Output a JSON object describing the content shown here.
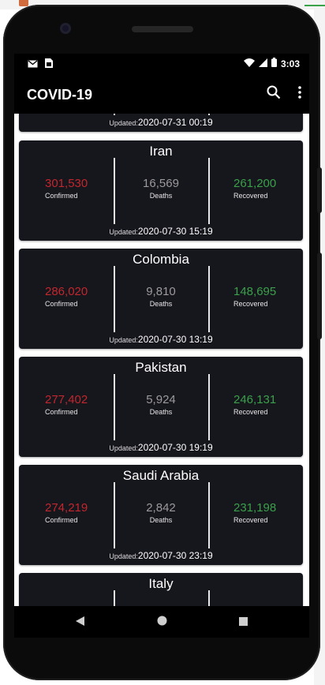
{
  "desktop": {
    "tab_text": ""
  },
  "status": {
    "time": "3:03"
  },
  "appbar": {
    "title": "COVID-19"
  },
  "labels": {
    "confirmed": "Confirmed",
    "deaths": "Deaths",
    "recovered": "Recovered",
    "updated_prefix": "Updated:"
  },
  "cards": [
    {
      "country": "",
      "confirmed": "",
      "deaths": "",
      "recovered": "",
      "updated": "2020-07-31 00:19"
    },
    {
      "country": "Iran",
      "confirmed": "301,530",
      "deaths": "16,569",
      "recovered": "261,200",
      "updated": "2020-07-30 15:19"
    },
    {
      "country": "Colombia",
      "confirmed": "286,020",
      "deaths": "9,810",
      "recovered": "148,695",
      "updated": "2020-07-30 13:19"
    },
    {
      "country": "Pakistan",
      "confirmed": "277,402",
      "deaths": "5,924",
      "recovered": "246,131",
      "updated": "2020-07-30 19:19"
    },
    {
      "country": "Saudi Arabia",
      "confirmed": "274,219",
      "deaths": "2,842",
      "recovered": "231,198",
      "updated": "2020-07-30 23:19"
    },
    {
      "country": "Italy",
      "confirmed": "",
      "deaths": "",
      "recovered": "",
      "updated": ""
    }
  ],
  "colors": {
    "confirmed": "#c1272d",
    "deaths": "#9b9b9b",
    "recovered": "#3aa04a",
    "card_bg": "#16161d"
  },
  "icons": [
    "mail-icon",
    "sim-card-icon",
    "wifi-icon",
    "signal-icon",
    "battery-icon",
    "search-icon",
    "more-vert-icon",
    "back-icon",
    "home-icon",
    "recents-icon"
  ]
}
